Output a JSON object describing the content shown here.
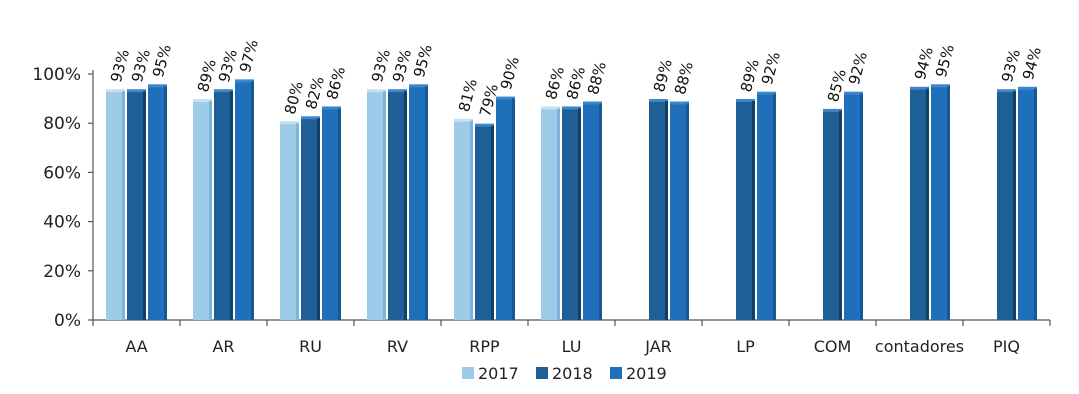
{
  "chart_data": {
    "type": "bar",
    "title": "",
    "xlabel": "",
    "ylabel": "",
    "ylim": [
      0,
      1.0
    ],
    "yticks": [
      0,
      0.2,
      0.4,
      0.6,
      0.8,
      1.0
    ],
    "ytick_labels": [
      "0%",
      "20%",
      "40%",
      "60%",
      "80%",
      "100%"
    ],
    "grid": false,
    "legend_position": "bottom",
    "categories": [
      "AA",
      "AR",
      "RU",
      "RV",
      "RPP",
      "LU",
      "JAR",
      "LP",
      "COM",
      "contadores",
      "PIQ"
    ],
    "series": [
      {
        "name": "2017",
        "color": "#9ecbe8",
        "values": [
          0.93,
          0.89,
          0.8,
          0.93,
          0.81,
          0.86,
          null,
          null,
          null,
          null,
          null
        ],
        "labels": [
          "93%",
          "89%",
          "80%",
          "93%",
          "81%",
          "86%",
          null,
          null,
          null,
          null,
          null
        ]
      },
      {
        "name": "2018",
        "color": "#1d5f96",
        "values": [
          0.93,
          0.93,
          0.82,
          0.93,
          0.79,
          0.86,
          0.89,
          0.89,
          0.85,
          0.94,
          0.93
        ],
        "labels": [
          "93%",
          "93%",
          "82%",
          "93%",
          "79%",
          "86%",
          "89%",
          "89%",
          "85%",
          "94%",
          "93%"
        ]
      },
      {
        "name": "2019",
        "color": "#1f6fba",
        "values": [
          0.95,
          0.97,
          0.86,
          0.95,
          0.9,
          0.88,
          0.88,
          0.92,
          0.92,
          0.95,
          0.94
        ],
        "labels": [
          "95%",
          "97%",
          "86%",
          "95%",
          "90%",
          "88%",
          "88%",
          "92%",
          "92%",
          "95%",
          "94%"
        ]
      }
    ]
  }
}
